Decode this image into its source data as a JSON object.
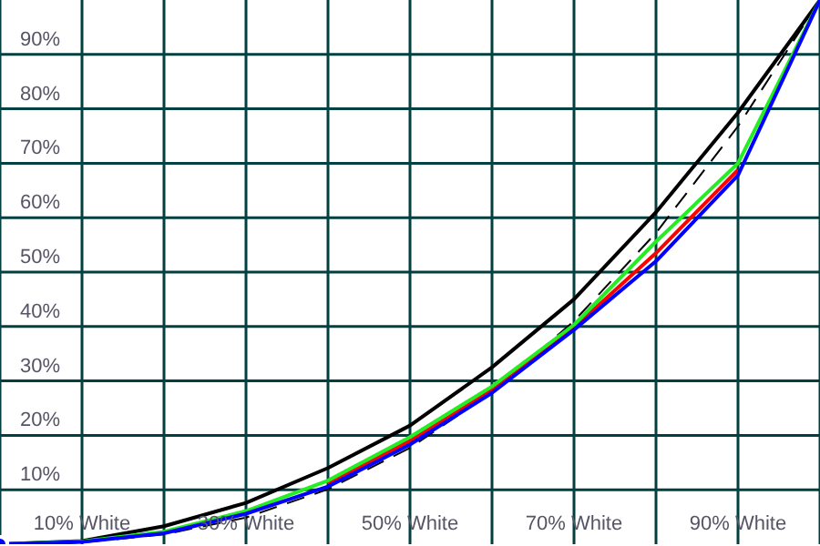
{
  "chart_data": {
    "type": "line",
    "x": [
      0,
      10,
      20,
      30,
      40,
      50,
      60,
      70,
      80,
      90,
      100
    ],
    "series": [
      {
        "color": "#000000",
        "values": [
          0,
          0.6,
          3.3,
          7.6,
          14,
          21.8,
          32.5,
          45,
          61,
          79.3,
          100
        ]
      },
      {
        "color": "#000000",
        "line_style": "dashed",
        "values": [
          0,
          0.3,
          1.8,
          4.9,
          10.1,
          17.7,
          27.9,
          41,
          57.2,
          76.8,
          100
        ]
      },
      {
        "color": "#ff0000",
        "values": [
          null,
          null,
          null,
          null,
          11.1,
          19,
          28.3,
          39.8,
          53.5,
          68.8,
          null
        ]
      },
      {
        "color": "#22ee22",
        "values": [
          0,
          0.5,
          2.3,
          6.1,
          11.7,
          19.7,
          29,
          40.3,
          55.6,
          70,
          100
        ]
      },
      {
        "color": "#0000ff",
        "values": [
          0,
          0.4,
          2,
          5.6,
          10.6,
          18.3,
          27.8,
          39.4,
          52,
          67.8,
          100
        ]
      }
    ],
    "xlim": [
      0,
      100
    ],
    "xticks": [
      {
        "value": 0,
        "label": null
      },
      {
        "value": 10,
        "label": "10% White"
      },
      {
        "value": 20,
        "label": null
      },
      {
        "value": 30,
        "label": "30% White"
      },
      {
        "value": 40,
        "label": null
      },
      {
        "value": 50,
        "label": "50% White"
      },
      {
        "value": 60,
        "label": null
      },
      {
        "value": 70,
        "label": "70% White"
      },
      {
        "value": 80,
        "label": null
      },
      {
        "value": 90,
        "label": "90% White"
      },
      {
        "value": 100,
        "label": null
      }
    ],
    "ylim": [
      0,
      100
    ],
    "yticks": [
      {
        "value": 10,
        "label": "10%"
      },
      {
        "value": 20,
        "label": "20%"
      },
      {
        "value": 30,
        "label": "30%"
      },
      {
        "value": 40,
        "label": "40%"
      },
      {
        "value": 50,
        "label": "50%"
      },
      {
        "value": 60,
        "label": "60%"
      },
      {
        "value": 70,
        "label": "70%"
      },
      {
        "value": 80,
        "label": "80%"
      },
      {
        "value": 90,
        "label": "90%"
      }
    ],
    "grid": true,
    "marker": "none"
  }
}
